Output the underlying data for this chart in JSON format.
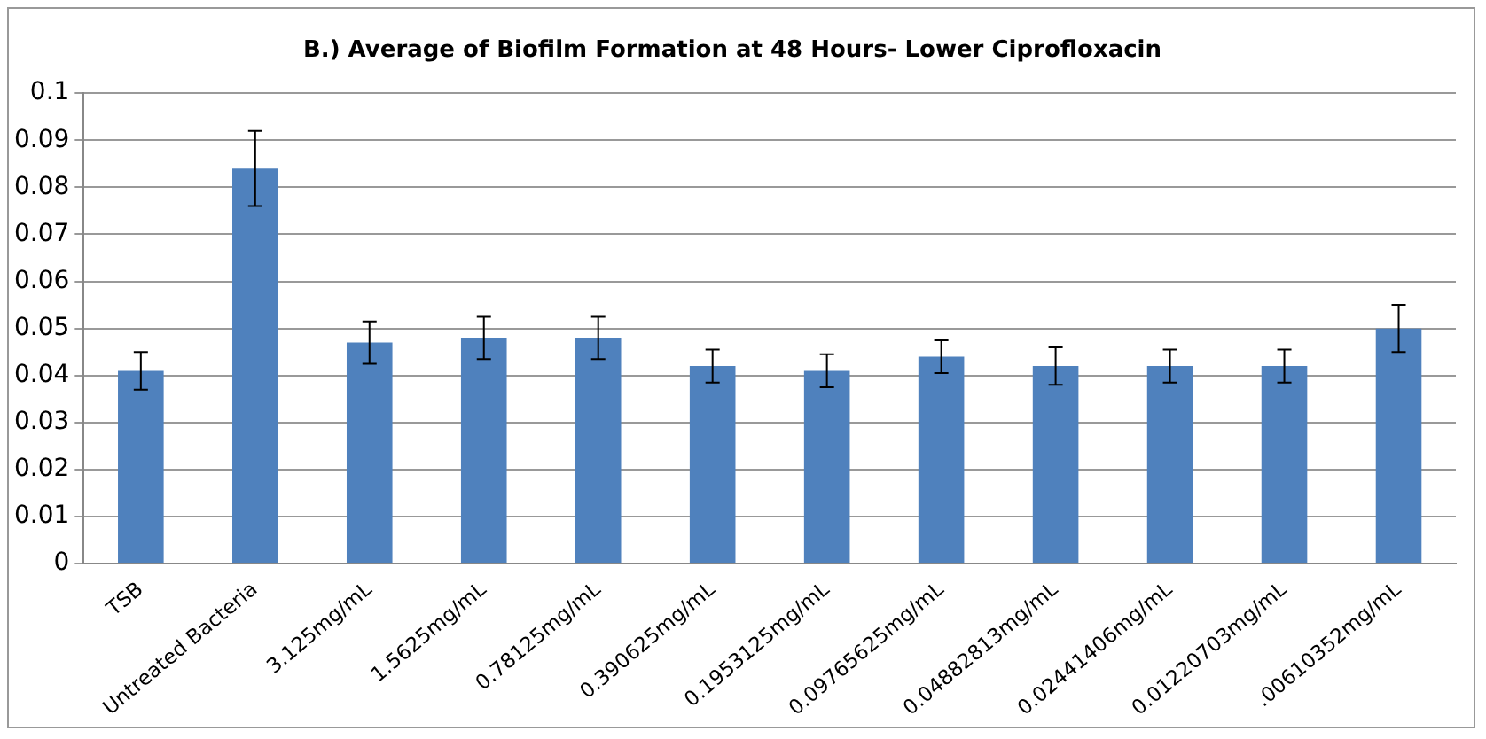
{
  "chart_data": {
    "type": "bar",
    "title": "B.) Average of Biofilm Formation at 48 Hours- Lower Ciprofloxacin",
    "categories": [
      "TSB",
      "Untreated Bacteria",
      "3.125mg/mL",
      "1.5625mg/mL",
      "0.78125mg/mL",
      "0.390625mg/mL",
      "0.1953125mg/mL",
      "0.09765625mg/mL",
      "0.04882813mg/mL",
      "0.02441406mg/mL",
      "0.01220703mg/mL",
      ".00610352mg/mL"
    ],
    "values": [
      0.041,
      0.084,
      0.047,
      0.048,
      0.048,
      0.042,
      0.041,
      0.044,
      0.042,
      0.042,
      0.042,
      0.05
    ],
    "errors": [
      0.004,
      0.008,
      0.0045,
      0.0045,
      0.0045,
      0.0035,
      0.0035,
      0.0035,
      0.004,
      0.0035,
      0.0035,
      0.005
    ],
    "color": "#4f81bd",
    "ylim": [
      0,
      0.1
    ],
    "yticks": [
      0,
      0.01,
      0.02,
      0.03,
      0.04,
      0.05,
      0.06,
      0.07,
      0.08,
      0.09,
      {
        "value": 0.1,
        "label": "0.1"
      }
    ],
    "grid": "y",
    "legend": false
  }
}
